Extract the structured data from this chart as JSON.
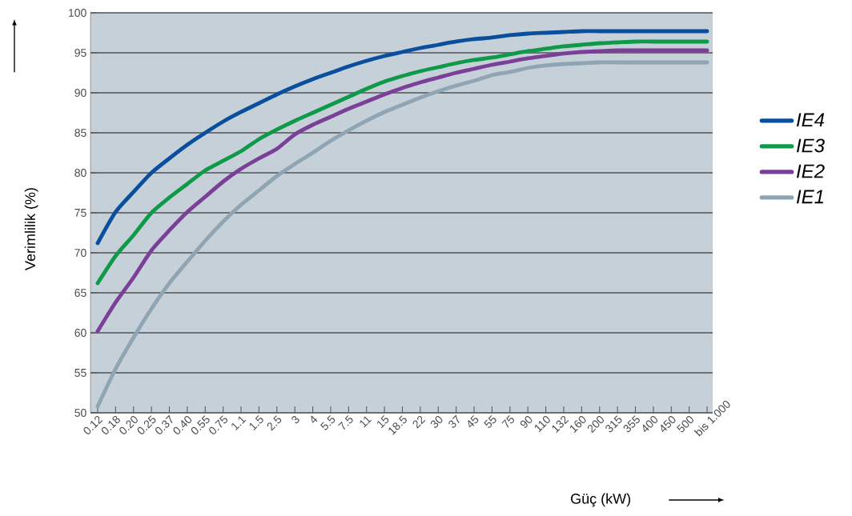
{
  "chart_data": {
    "type": "line",
    "xlabel": "Güç (kW)",
    "ylabel": "Verimlilik (%)",
    "categories": [
      "0.12",
      "0.18",
      "0.20",
      "0.25",
      "0.37",
      "0.40",
      "0.55",
      "0.75",
      "1.1",
      "1.5",
      "2.5",
      "3",
      "4",
      "5.5",
      "7.5",
      "11",
      "15",
      "18.5",
      "22",
      "30",
      "37",
      "45",
      "55",
      "75",
      "90",
      "110",
      "132",
      "160",
      "200",
      "315",
      "355",
      "400",
      "450",
      "500",
      "bis 1.000"
    ],
    "ylim": [
      50,
      100
    ],
    "yticks": [
      50,
      55,
      60,
      65,
      70,
      75,
      80,
      85,
      90,
      95,
      100
    ],
    "grid": "y",
    "legend": "right",
    "marker": "none",
    "line_style": "solid",
    "series": [
      {
        "name": "IE4",
        "color": "#0a4f9e",
        "values": [
          71.2,
          75.1,
          77.6,
          80.0,
          81.8,
          83.5,
          85.0,
          86.4,
          87.6,
          88.7,
          89.8,
          90.8,
          91.7,
          92.5,
          93.3,
          94.0,
          94.6,
          95.1,
          95.6,
          96.0,
          96.4,
          96.7,
          96.9,
          97.2,
          97.4,
          97.5,
          97.6,
          97.7,
          97.7,
          97.7,
          97.7,
          97.7,
          97.7,
          97.7,
          97.7
        ]
      },
      {
        "name": "IE3",
        "color": "#0e9a48",
        "values": [
          66.2,
          69.6,
          72.2,
          75.0,
          76.9,
          78.6,
          80.3,
          81.5,
          82.7,
          84.2,
          85.4,
          86.5,
          87.5,
          88.5,
          89.5,
          90.5,
          91.4,
          92.1,
          92.7,
          93.2,
          93.7,
          94.1,
          94.4,
          94.8,
          95.2,
          95.5,
          95.8,
          96.0,
          96.2,
          96.3,
          96.4,
          96.4,
          96.4,
          96.4,
          96.4
        ]
      },
      {
        "name": "IE2",
        "color": "#7b3f98",
        "values": [
          60.2,
          63.8,
          66.9,
          70.3,
          72.8,
          75.1,
          77.0,
          78.9,
          80.5,
          81.8,
          83.0,
          84.8,
          86.0,
          87.0,
          88.0,
          88.9,
          89.8,
          90.6,
          91.3,
          91.9,
          92.5,
          93.0,
          93.5,
          93.9,
          94.3,
          94.6,
          94.9,
          95.1,
          95.2,
          95.3,
          95.3,
          95.3,
          95.3,
          95.3,
          95.3
        ]
      },
      {
        "name": "IE1",
        "color": "#8fa5b4",
        "values": [
          50.8,
          55.5,
          59.4,
          63.0,
          66.2,
          68.9,
          71.5,
          73.9,
          76.0,
          77.8,
          79.6,
          81.1,
          82.5,
          84.0,
          85.3,
          86.5,
          87.6,
          88.5,
          89.4,
          90.2,
          90.9,
          91.5,
          92.2,
          92.6,
          93.1,
          93.4,
          93.6,
          93.7,
          93.8,
          93.8,
          93.8,
          93.8,
          93.8,
          93.8,
          93.8
        ]
      }
    ]
  }
}
